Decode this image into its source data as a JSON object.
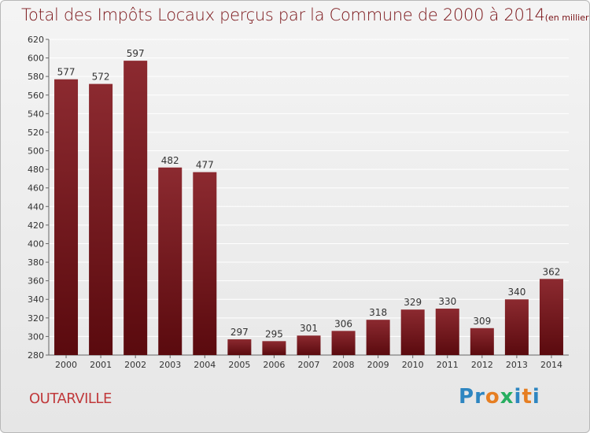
{
  "title": "Total des Impôts Locaux perçus par la Commune de 2000 à 2014",
  "unit_note": "(en milliers d'€)",
  "commune": "OUTARVILLE",
  "logo": {
    "text": "Proxiti",
    "letters": [
      "P",
      "r",
      "o",
      "x",
      "i",
      "t",
      "i"
    ],
    "colors": [
      "#2e86c1",
      "#2e86c1",
      "#e67e22",
      "#27ae60",
      "#2e86c1",
      "#e67e22",
      "#2e86c1"
    ]
  },
  "colors": {
    "bar_top": "#8c2a30",
    "bar_bottom": "#5a0a0e",
    "title": "#7a1418",
    "commune": "#c0393b",
    "grid": "#ffffff"
  },
  "chart_data": {
    "type": "bar",
    "title": "Total des Impôts Locaux perçus par la Commune de 2000 à 2014",
    "xlabel": "",
    "ylabel": "",
    "ylim": [
      280,
      620
    ],
    "y_ticks": [
      280,
      300,
      320,
      340,
      360,
      380,
      400,
      420,
      440,
      460,
      480,
      500,
      520,
      540,
      560,
      580,
      600,
      620
    ],
    "grid": true,
    "categories": [
      "2000",
      "2001",
      "2002",
      "2003",
      "2004",
      "2005",
      "2006",
      "2007",
      "2008",
      "2009",
      "2010",
      "2011",
      "2012",
      "2013",
      "2014"
    ],
    "values": [
      577,
      572,
      597,
      482,
      477,
      297,
      295,
      301,
      306,
      318,
      329,
      330,
      309,
      340,
      362
    ]
  }
}
